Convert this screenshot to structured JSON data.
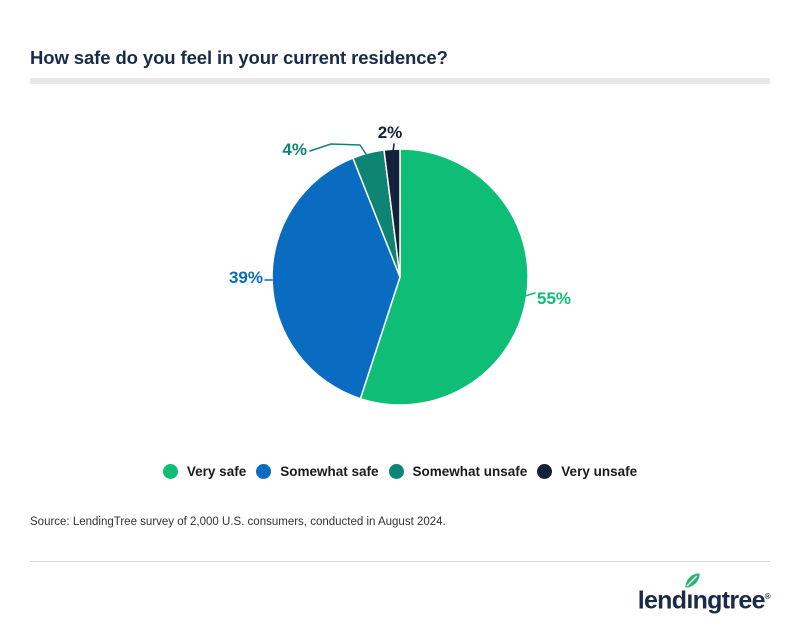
{
  "page": {
    "title": "How safe do you feel in your current residence?",
    "source_note": "Source: LendingTree survey of 2,000 U.S. consumers, conducted in August 2024."
  },
  "chart_data": {
    "type": "pie",
    "title": "How safe do you feel in your current residence?",
    "unit": "%",
    "direction": "clockwise",
    "start_angle_deg": 0,
    "legend_position": "bottom",
    "data_labels": "outside",
    "slices": [
      {
        "label": "Very safe",
        "value": 55,
        "color": "#0ebe76"
      },
      {
        "label": "Somewhat safe",
        "value": 39,
        "color": "#0a6cc0"
      },
      {
        "label": "Somewhat unsafe",
        "value": 4,
        "color": "#0e8474"
      },
      {
        "label": "Very unsafe",
        "value": 2,
        "color": "#14213a"
      }
    ]
  },
  "footer": {
    "logo_text": "lendingtree",
    "registered_mark": "®"
  },
  "theme": {
    "background": "#ffffff",
    "title-color": "#1a2b49",
    "text-color": "#333333",
    "legend-text-color": "#1a1a1a",
    "title-bar-color": "#e8e8e8",
    "divider-color": "#d9d9d9",
    "logo-color": "#1a2b49",
    "leaf-color": "#29b573"
  }
}
